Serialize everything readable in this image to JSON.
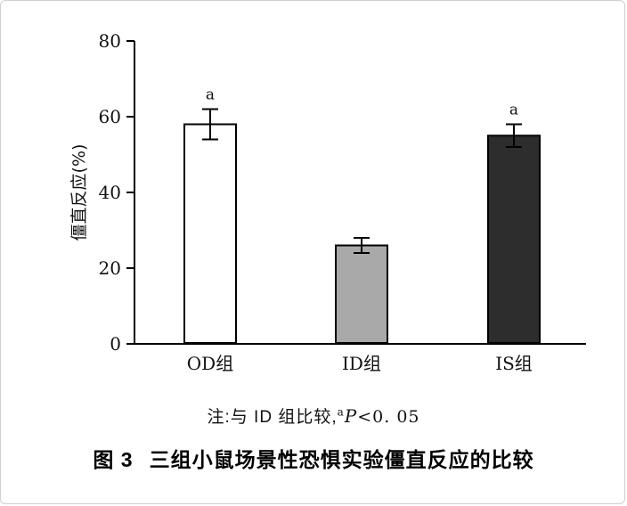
{
  "chart_data": {
    "type": "bar",
    "title": "三组小鼠场景性恐惧实验僵直反应的比较",
    "figure_label": "图 3",
    "ylabel": "僵直反应(%)",
    "ylim": [
      0,
      80
    ],
    "yticks": [
      0,
      20,
      40,
      60,
      80
    ],
    "categories": [
      "OD组",
      "ID组",
      "IS组"
    ],
    "values": [
      58,
      26,
      55
    ],
    "errors": [
      4,
      2,
      3
    ],
    "sig_labels": [
      "a",
      "",
      "a"
    ],
    "bar_colors": [
      "#ffffff",
      "#a9a9a9",
      "#2d2d2d"
    ],
    "bar_edge_color": "#000000",
    "grid": false,
    "legend": "none",
    "note": {
      "prefix": "注:与 ID 组比较,",
      "sup": "a",
      "stat": "P",
      "comparison": "<0. 05"
    }
  }
}
